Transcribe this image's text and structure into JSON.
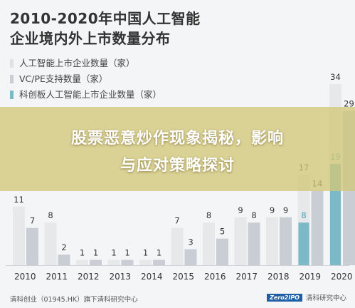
{
  "chart_data": {
    "type": "bar",
    "title_line1": "2010-2020年中国人工智能",
    "title_line2": "企业境内外上市数量分布",
    "categories": [
      "2010",
      "2011",
      "2012",
      "2013",
      "2014",
      "2015",
      "2016",
      "2017",
      "2018",
      "2019",
      "2020"
    ],
    "series": [
      {
        "name": "人工智能上市企业数量（家）",
        "color": "#e6e8ea",
        "label_color": "#333333",
        "values": [
          11,
          8,
          1,
          1,
          1,
          7,
          8,
          9,
          9,
          17,
          34
        ]
      },
      {
        "name": "VC/PE支持数量（家）",
        "color": "#c8ced4",
        "label_color": "#333333",
        "values": [
          7,
          2,
          1,
          1,
          1,
          3,
          5,
          8,
          9,
          14,
          29
        ]
      },
      {
        "name": "科创板人工智能上市企业数量（家）",
        "color": "#7cb9c8",
        "label_color": "#4a9fb5",
        "values": [
          null,
          null,
          null,
          null,
          null,
          null,
          null,
          null,
          null,
          8,
          19
        ]
      }
    ],
    "ylim": [
      0,
      34
    ],
    "grid": false,
    "legend_position": "top-left"
  },
  "banner": {
    "line1": "股票恶意炒作现象揭秘，影响",
    "line2": "与应对策略探讨"
  },
  "footer": {
    "source": "清科创业（01945.HK）旗下清科研究中心",
    "logo_text": "Zero2IPO",
    "logo_caption": "清科研究中心"
  }
}
